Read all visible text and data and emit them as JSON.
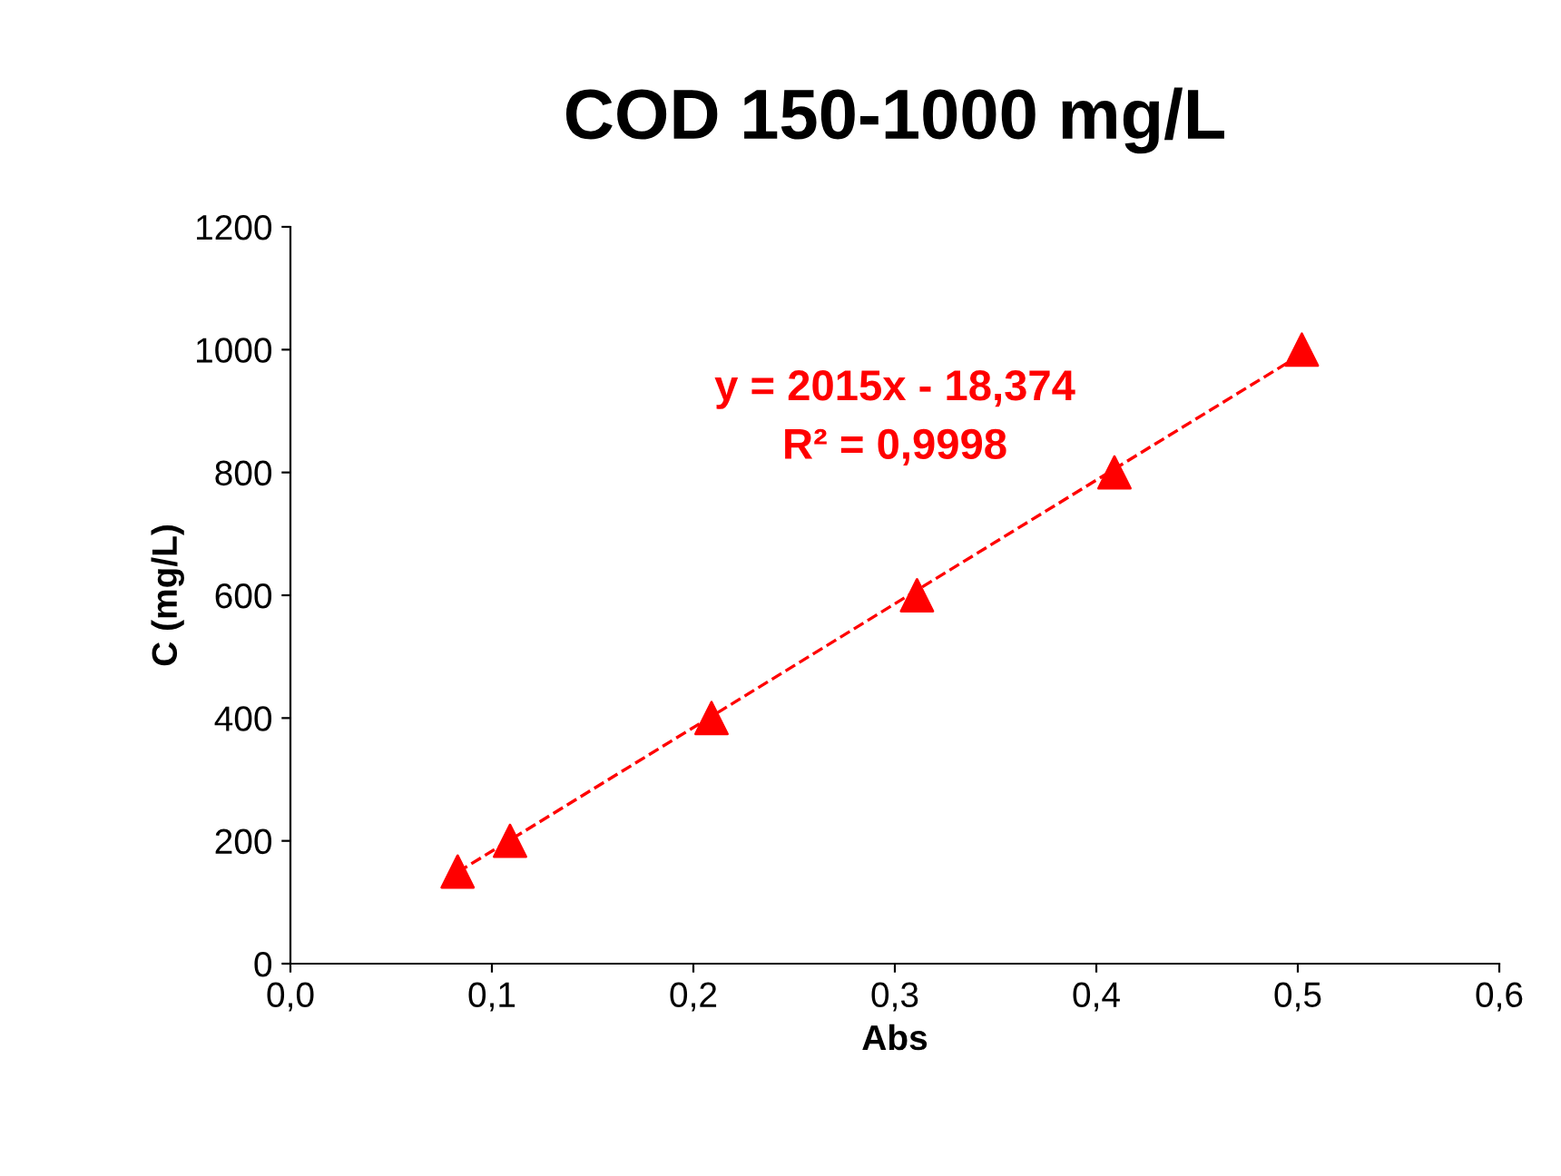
{
  "chart_data": {
    "type": "scatter",
    "title": "COD 150-1000 mg/L",
    "xlabel": "Abs",
    "ylabel": "C (mg/L)",
    "xlim": [
      0,
      0.6
    ],
    "ylim": [
      0,
      1200
    ],
    "xticks": [
      {
        "value": 0,
        "label": "0,0"
      },
      {
        "value": 0.1,
        "label": "0,1"
      },
      {
        "value": 0.2,
        "label": "0,2"
      },
      {
        "value": 0.3,
        "label": "0,3"
      },
      {
        "value": 0.4,
        "label": "0,4"
      },
      {
        "value": 0.5,
        "label": "0,5"
      },
      {
        "value": 0.6,
        "label": "0,6"
      }
    ],
    "yticks": [
      0,
      200,
      400,
      600,
      800,
      1000,
      1200
    ],
    "grid": false,
    "legend": false,
    "series": [
      {
        "color": "#ff0000",
        "marker": "triangle",
        "x": [
          0.083,
          0.109,
          0.209,
          0.311,
          0.409,
          0.502
        ],
        "values": [
          150,
          200,
          400,
          600,
          800,
          1000
        ]
      },
      {
        "type": "line",
        "color": "#ff0000",
        "marker": "none",
        "line_style": "dashed",
        "x": [
          0.083,
          0.502
        ],
        "values": [
          149,
          993
        ]
      }
    ],
    "annotations": [
      "y = 2015x - 18,374\nR² = 0,9998"
    ]
  }
}
